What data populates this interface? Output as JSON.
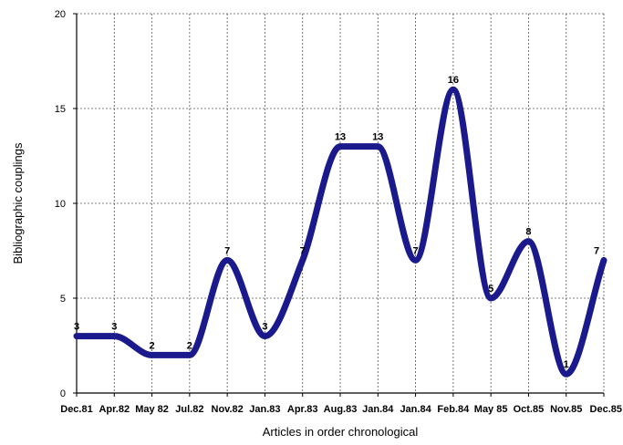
{
  "chart_data": {
    "type": "line",
    "title": "",
    "xlabel": "Articles in order chronological",
    "ylabel": "Bibliographic couplings",
    "categories": [
      "Dec.81",
      "Apr.82",
      "May 82",
      "Jul.82",
      "Nov.82",
      "Jan.83",
      "Apr.83",
      "Aug.83",
      "Jan.84",
      "Jan.84",
      "Feb.84",
      "May 85",
      "Oct.85",
      "Nov.85",
      "Dec.85"
    ],
    "series": [
      {
        "values": [
          3,
          3,
          2,
          2,
          7,
          3,
          7,
          13,
          13,
          7,
          16,
          5,
          8,
          1,
          7
        ]
      }
    ],
    "ylim": [
      0,
      20
    ],
    "yticks": [
      0,
      5,
      10,
      15,
      20
    ],
    "grid": true,
    "smooth": true,
    "line_color": "#1a1a8c"
  }
}
